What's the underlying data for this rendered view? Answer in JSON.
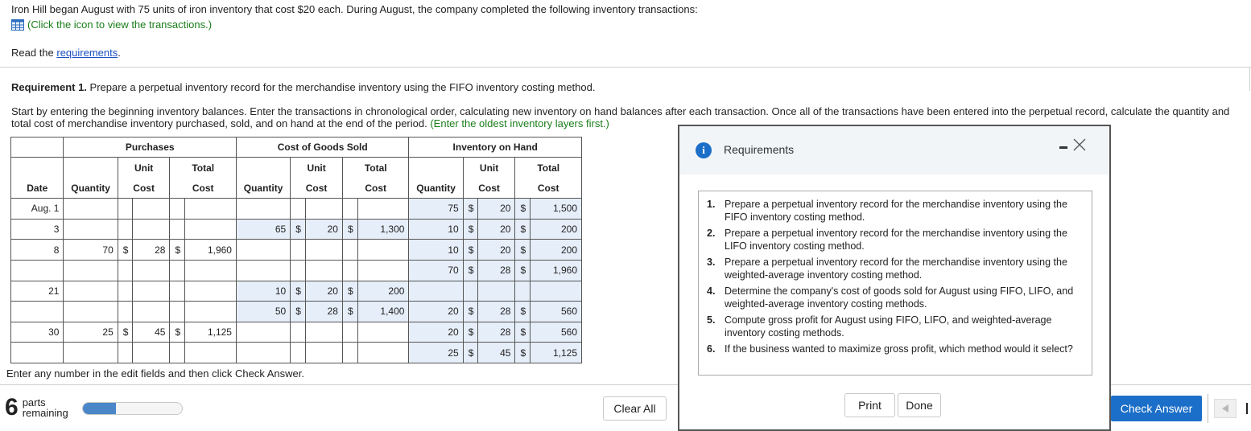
{
  "intro": "Iron Hill began August with 75 units of iron inventory that cost $20 each. During August, the company completed the following inventory transactions:",
  "click_text": "(Click the icon to view the transactions.)",
  "read_prefix": "Read the ",
  "read_link": "requirements",
  "read_suffix": ".",
  "req1_bold": "Requirement 1.",
  "req1_text": " Prepare a perpetual inventory record for the merchandise inventory using the FIFO inventory costing method.",
  "start_text": "Start by entering the beginning inventory balances. Enter the transactions in chronological order, calculating new inventory on hand balances after each transaction. Once all of the transactions have been entered into the perpetual record, calculate the quantity and total cost of merchandise inventory purchased, sold, and on hand at the end of the period. ",
  "start_hint": "(Enter the oldest inventory layers first.)",
  "table": {
    "groups": [
      "Purchases",
      "Cost of Goods Sold",
      "Inventory on Hand"
    ],
    "sub_unit": "Unit",
    "sub_total": "Total",
    "h_date": "Date",
    "h_quantity": "Quantity",
    "h_cost": "Cost",
    "rows": [
      {
        "date": "Aug. 1",
        "pq": "",
        "pu": "",
        "pt": "",
        "cq": "",
        "cu": "",
        "ct": "",
        "iq": "75",
        "iu": "20",
        "it": "1,500"
      },
      {
        "date": "3",
        "pq": "",
        "pu": "",
        "pt": "",
        "cq": "65",
        "cu": "20",
        "ct": "1,300",
        "iq": "10",
        "iu": "20",
        "it": "200"
      },
      {
        "date": "8",
        "pq": "70",
        "pu": "28",
        "pt": "1,960",
        "cq": "",
        "cu": "",
        "ct": "",
        "iq": "10",
        "iu": "20",
        "it": "200"
      },
      {
        "date": "",
        "pq": "",
        "pu": "",
        "pt": "",
        "cq": "",
        "cu": "",
        "ct": "",
        "iq": "70",
        "iu": "28",
        "it": "1,960"
      },
      {
        "date": "21",
        "pq": "",
        "pu": "",
        "pt": "",
        "cq": "10",
        "cu": "20",
        "ct": "200",
        "iq": "",
        "iu": "",
        "it": ""
      },
      {
        "date": "",
        "pq": "",
        "pu": "",
        "pt": "",
        "cq": "50",
        "cu": "28",
        "ct": "1,400",
        "iq": "20",
        "iu": "28",
        "it": "560"
      },
      {
        "date": "30",
        "pq": "25",
        "pu": "45",
        "pt": "1,125",
        "cq": "",
        "cu": "",
        "ct": "",
        "iq": "20",
        "iu": "28",
        "it": "560"
      },
      {
        "date": "",
        "pq": "",
        "pu": "",
        "pt": "",
        "cq": "",
        "cu": "",
        "ct": "",
        "iq": "25",
        "iu": "45",
        "it": "1,125"
      }
    ]
  },
  "enter_any": "Enter any number in the edit fields and then click Check Answer.",
  "parts_count": "6",
  "parts_label": "parts",
  "parts_label2": "remaining",
  "progress_fraction": 0.33,
  "clear_all": "Clear All",
  "check_answer": "Check Answer",
  "modal": {
    "title": "Requirements",
    "info_glyph": "i",
    "items": [
      {
        "n": "1.",
        "text": "Prepare a perpetual inventory record for the merchandise inventory using the FIFO inventory costing method."
      },
      {
        "n": "2.",
        "text": "Prepare a perpetual inventory record for the merchandise inventory using the LIFO inventory costing method."
      },
      {
        "n": "3.",
        "text": "Prepare a perpetual inventory record for the merchandise inventory using the weighted-average inventory costing method."
      },
      {
        "n": "4.",
        "text": "Determine the company's cost of goods sold for August using FIFO, LIFO, and weighted-average inventory costing methods."
      },
      {
        "n": "5.",
        "text": "Compute gross profit for August using FIFO, LIFO, and weighted-average inventory costing methods."
      },
      {
        "n": "6.",
        "text": "If the business wanted to maximize gross profit, which method would it select?"
      }
    ],
    "print": "Print",
    "done": "Done"
  },
  "colors": {
    "accent": "#1c6fc8",
    "hint_green": "#1a7d1a",
    "cell_shade": "#e6eef9"
  }
}
